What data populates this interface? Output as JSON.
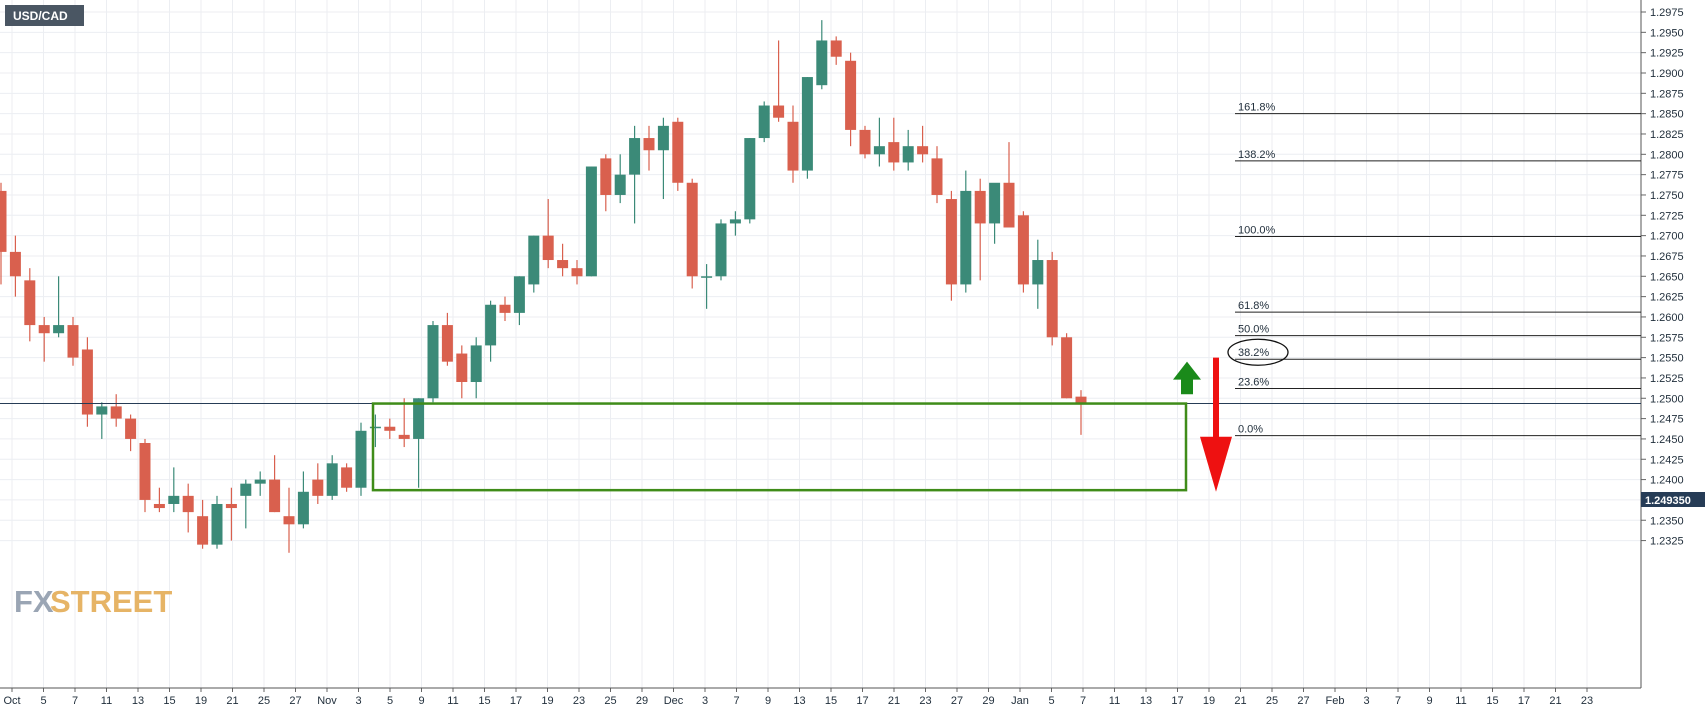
{
  "symbol": "USD/CAD",
  "current_price_label": "1.249350",
  "logo": {
    "fx": "FX",
    "street": "STREET"
  },
  "colors": {
    "up": "#3b8a78",
    "down": "#d9604e",
    "grid": "#eceef2",
    "box": "#3f8c19",
    "arrow_up": "#1a8a1a",
    "arrow_down": "#ee1111",
    "price_tag": "#263c56",
    "symbol_tag": "#4a5663"
  },
  "chart_data": {
    "type": "candlestick",
    "title": "USD/CAD",
    "ylim": [
      1.2305,
      1.2985
    ],
    "y_ticks": [
      "1.2975",
      "1.2950",
      "1.2925",
      "1.2900",
      "1.2875",
      "1.2850",
      "1.2825",
      "1.2800",
      "1.2775",
      "1.2750",
      "1.2725",
      "1.2700",
      "1.2675",
      "1.2650",
      "1.2625",
      "1.2600",
      "1.2575",
      "1.2550",
      "1.2525",
      "1.2500",
      "1.2475",
      "1.2450",
      "1.2425",
      "1.2400",
      "1.2375",
      "1.2350",
      "1.2325"
    ],
    "x_ticks": [
      "Oct",
      "5",
      "7",
      "11",
      "13",
      "15",
      "19",
      "21",
      "25",
      "27",
      "Nov",
      "3",
      "5",
      "9",
      "11",
      "15",
      "17",
      "19",
      "23",
      "25",
      "29",
      "Dec",
      "3",
      "7",
      "9",
      "13",
      "15",
      "17",
      "21",
      "23",
      "27",
      "29",
      "Jan",
      "5",
      "7",
      "11",
      "13",
      "17",
      "19",
      "21",
      "25",
      "27",
      "Feb",
      "3",
      "7",
      "9",
      "11",
      "15",
      "17",
      "21",
      "23"
    ],
    "current_price": 1.24935,
    "candles": [
      {
        "o": 1.2755,
        "h": 1.2765,
        "l": 1.264,
        "c": 1.268
      },
      {
        "o": 1.268,
        "h": 1.27,
        "l": 1.2625,
        "c": 1.265
      },
      {
        "o": 1.2645,
        "h": 1.266,
        "l": 1.257,
        "c": 1.259
      },
      {
        "o": 1.259,
        "h": 1.26,
        "l": 1.2545,
        "c": 1.258
      },
      {
        "o": 1.258,
        "h": 1.265,
        "l": 1.2575,
        "c": 1.259
      },
      {
        "o": 1.259,
        "h": 1.26,
        "l": 1.254,
        "c": 1.255
      },
      {
        "o": 1.256,
        "h": 1.2575,
        "l": 1.2465,
        "c": 1.248
      },
      {
        "o": 1.248,
        "h": 1.2495,
        "l": 1.245,
        "c": 1.249
      },
      {
        "o": 1.249,
        "h": 1.2505,
        "l": 1.2465,
        "c": 1.2475
      },
      {
        "o": 1.2475,
        "h": 1.248,
        "l": 1.2435,
        "c": 1.245
      },
      {
        "o": 1.2445,
        "h": 1.245,
        "l": 1.236,
        "c": 1.2375
      },
      {
        "o": 1.237,
        "h": 1.239,
        "l": 1.236,
        "c": 1.2365
      },
      {
        "o": 1.237,
        "h": 1.2415,
        "l": 1.236,
        "c": 1.238
      },
      {
        "o": 1.238,
        "h": 1.2395,
        "l": 1.2335,
        "c": 1.236
      },
      {
        "o": 1.2355,
        "h": 1.2375,
        "l": 1.2315,
        "c": 1.232
      },
      {
        "o": 1.232,
        "h": 1.238,
        "l": 1.2315,
        "c": 1.237
      },
      {
        "o": 1.237,
        "h": 1.239,
        "l": 1.2325,
        "c": 1.2365
      },
      {
        "o": 1.238,
        "h": 1.24,
        "l": 1.234,
        "c": 1.2395
      },
      {
        "o": 1.2395,
        "h": 1.241,
        "l": 1.238,
        "c": 1.24
      },
      {
        "o": 1.24,
        "h": 1.243,
        "l": 1.236,
        "c": 1.236
      },
      {
        "o": 1.2355,
        "h": 1.239,
        "l": 1.231,
        "c": 1.2345
      },
      {
        "o": 1.2345,
        "h": 1.241,
        "l": 1.234,
        "c": 1.2385
      },
      {
        "o": 1.24,
        "h": 1.242,
        "l": 1.237,
        "c": 1.238
      },
      {
        "o": 1.238,
        "h": 1.243,
        "l": 1.2375,
        "c": 1.242
      },
      {
        "o": 1.2415,
        "h": 1.242,
        "l": 1.2385,
        "c": 1.239
      },
      {
        "o": 1.239,
        "h": 1.247,
        "l": 1.238,
        "c": 1.246
      },
      {
        "o": 1.2465,
        "h": 1.248,
        "l": 1.244,
        "c": 1.2465
      },
      {
        "o": 1.2465,
        "h": 1.2475,
        "l": 1.245,
        "c": 1.246
      },
      {
        "o": 1.2455,
        "h": 1.25,
        "l": 1.244,
        "c": 1.245
      },
      {
        "o": 1.245,
        "h": 1.25,
        "l": 1.239,
        "c": 1.25
      },
      {
        "o": 1.25,
        "h": 1.2595,
        "l": 1.2495,
        "c": 1.259
      },
      {
        "o": 1.259,
        "h": 1.2605,
        "l": 1.254,
        "c": 1.2545
      },
      {
        "o": 1.2555,
        "h": 1.2565,
        "l": 1.25,
        "c": 1.252
      },
      {
        "o": 1.252,
        "h": 1.2575,
        "l": 1.25,
        "c": 1.2565
      },
      {
        "o": 1.2565,
        "h": 1.262,
        "l": 1.2545,
        "c": 1.2615
      },
      {
        "o": 1.2615,
        "h": 1.2625,
        "l": 1.2595,
        "c": 1.2605
      },
      {
        "o": 1.2605,
        "h": 1.265,
        "l": 1.259,
        "c": 1.265
      },
      {
        "o": 1.264,
        "h": 1.27,
        "l": 1.263,
        "c": 1.27
      },
      {
        "o": 1.27,
        "h": 1.2745,
        "l": 1.266,
        "c": 1.267
      },
      {
        "o": 1.267,
        "h": 1.269,
        "l": 1.265,
        "c": 1.266
      },
      {
        "o": 1.266,
        "h": 1.267,
        "l": 1.264,
        "c": 1.265
      },
      {
        "o": 1.265,
        "h": 1.2785,
        "l": 1.265,
        "c": 1.2785
      },
      {
        "o": 1.2795,
        "h": 1.28,
        "l": 1.273,
        "c": 1.275
      },
      {
        "o": 1.275,
        "h": 1.28,
        "l": 1.274,
        "c": 1.2775
      },
      {
        "o": 1.2775,
        "h": 1.2835,
        "l": 1.2715,
        "c": 1.282
      },
      {
        "o": 1.282,
        "h": 1.2835,
        "l": 1.278,
        "c": 1.2805
      },
      {
        "o": 1.2805,
        "h": 1.2845,
        "l": 1.2745,
        "c": 1.2835
      },
      {
        "o": 1.284,
        "h": 1.2845,
        "l": 1.2755,
        "c": 1.2765
      },
      {
        "o": 1.2765,
        "h": 1.277,
        "l": 1.2635,
        "c": 1.265
      },
      {
        "o": 1.265,
        "h": 1.2665,
        "l": 1.261,
        "c": 1.265
      },
      {
        "o": 1.265,
        "h": 1.272,
        "l": 1.2645,
        "c": 1.2715
      },
      {
        "o": 1.2715,
        "h": 1.273,
        "l": 1.27,
        "c": 1.272
      },
      {
        "o": 1.272,
        "h": 1.282,
        "l": 1.2715,
        "c": 1.282
      },
      {
        "o": 1.282,
        "h": 1.2865,
        "l": 1.2815,
        "c": 1.286
      },
      {
        "o": 1.286,
        "h": 1.294,
        "l": 1.284,
        "c": 1.2845
      },
      {
        "o": 1.284,
        "h": 1.286,
        "l": 1.2765,
        "c": 1.278
      },
      {
        "o": 1.278,
        "h": 1.2895,
        "l": 1.277,
        "c": 1.2895
      },
      {
        "o": 1.2885,
        "h": 1.2965,
        "l": 1.288,
        "c": 1.294
      },
      {
        "o": 1.294,
        "h": 1.2945,
        "l": 1.291,
        "c": 1.292
      },
      {
        "o": 1.2915,
        "h": 1.2925,
        "l": 1.281,
        "c": 1.283
      },
      {
        "o": 1.283,
        "h": 1.2835,
        "l": 1.2795,
        "c": 1.28
      },
      {
        "o": 1.28,
        "h": 1.2845,
        "l": 1.2785,
        "c": 1.281
      },
      {
        "o": 1.2815,
        "h": 1.2845,
        "l": 1.278,
        "c": 1.279
      },
      {
        "o": 1.279,
        "h": 1.283,
        "l": 1.278,
        "c": 1.281
      },
      {
        "o": 1.281,
        "h": 1.2835,
        "l": 1.279,
        "c": 1.28
      },
      {
        "o": 1.2795,
        "h": 1.281,
        "l": 1.274,
        "c": 1.275
      },
      {
        "o": 1.2745,
        "h": 1.2755,
        "l": 1.262,
        "c": 1.264
      },
      {
        "o": 1.264,
        "h": 1.278,
        "l": 1.263,
        "c": 1.2755
      },
      {
        "o": 1.2755,
        "h": 1.277,
        "l": 1.2645,
        "c": 1.2715
      },
      {
        "o": 1.2715,
        "h": 1.276,
        "l": 1.269,
        "c": 1.2765
      },
      {
        "o": 1.2765,
        "h": 1.2815,
        "l": 1.271,
        "c": 1.271
      },
      {
        "o": 1.2725,
        "h": 1.273,
        "l": 1.263,
        "c": 1.264
      },
      {
        "o": 1.264,
        "h": 1.2695,
        "l": 1.261,
        "c": 1.267
      },
      {
        "o": 1.267,
        "h": 1.268,
        "l": 1.2565,
        "c": 1.2575
      },
      {
        "o": 1.2575,
        "h": 1.258,
        "l": 1.25,
        "c": 1.25
      },
      {
        "o": 1.2502,
        "h": 1.251,
        "l": 1.2455,
        "c": 1.24935
      }
    ],
    "fibonacci_levels": [
      {
        "label": "161.8%",
        "price": 1.285
      },
      {
        "label": "138.2%",
        "price": 1.2792
      },
      {
        "label": "100.0%",
        "price": 1.2699
      },
      {
        "label": "61.8%",
        "price": 1.2606
      },
      {
        "label": "50.0%",
        "price": 1.2577
      },
      {
        "label": "38.2%",
        "price": 1.2548,
        "highlighted": true
      },
      {
        "label": "23.6%",
        "price": 1.2512
      },
      {
        "label": "0.0%",
        "price": 1.2454
      }
    ],
    "support_zone": {
      "price_top": 1.24935,
      "price_bottom": 1.2387
    },
    "arrows": [
      {
        "direction": "up",
        "price_from": 1.2505,
        "price_to": 1.2545
      },
      {
        "direction": "down",
        "price_from": 1.255,
        "price_to": 1.2385
      }
    ]
  }
}
